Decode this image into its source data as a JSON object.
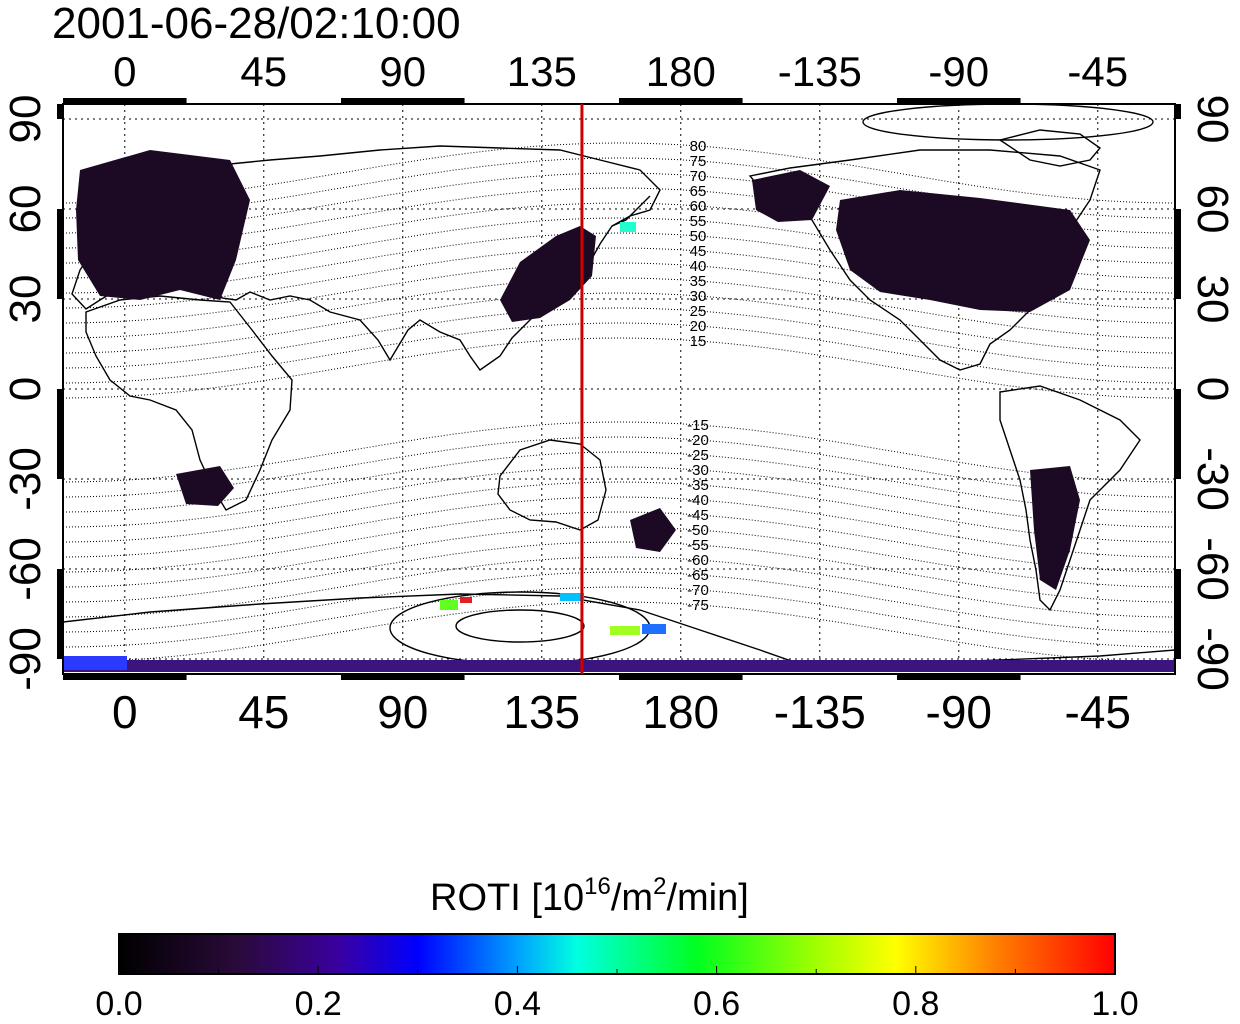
{
  "title": "2001-06-28/02:10:00",
  "map": {
    "lon_ticks": [
      "0",
      "45",
      "90",
      "135",
      "180",
      "-135",
      "-90",
      "-45"
    ],
    "lat_ticks": [
      "90",
      "60",
      "30",
      "0",
      "-30",
      "-60",
      "-90"
    ],
    "lon_range": [
      -20,
      340
    ],
    "lat_range": [
      -95,
      95
    ],
    "grid": true,
    "marker_longitude": 148,
    "marker_color": "#cc0000"
  },
  "mag_contours": {
    "north_labels": [
      "80",
      "75",
      "70",
      "65",
      "60",
      "55",
      "50",
      "45",
      "40",
      "35",
      "30",
      "25",
      "20",
      "15"
    ],
    "south_labels": [
      "-15",
      "-20",
      "-25",
      "-30",
      "-35",
      "-40",
      "-45",
      "-50",
      "-55",
      "-60",
      "-65",
      "-70",
      "-75"
    ]
  },
  "colorbar": {
    "title_prefix": "ROTI  [10",
    "title_sup1": "16",
    "title_mid": "/m",
    "title_sup2": "2",
    "title_suffix": "/min]",
    "ticks": [
      "0.0",
      "0.2",
      "0.4",
      "0.6",
      "0.8",
      "1.0"
    ],
    "range": [
      0.0,
      1.0
    ]
  }
}
